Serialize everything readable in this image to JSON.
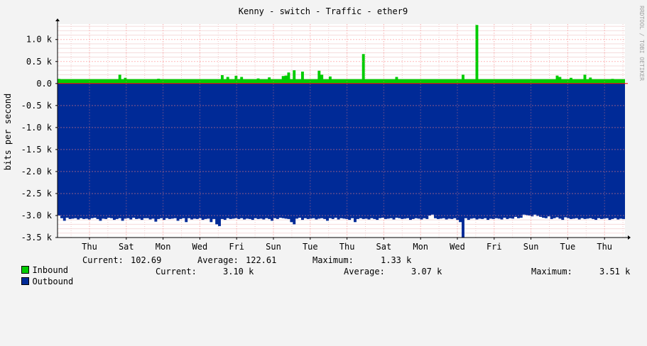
{
  "chart_data": {
    "type": "area",
    "title": "Kenny - switch - Traffic - ether9",
    "ylabel": "bits per second",
    "watermark": "RRDTOOL / TOBI OETIKER",
    "ylim": [
      -3500,
      1350
    ],
    "yticks": [
      1000,
      500,
      0,
      -500,
      -1000,
      -1500,
      -2000,
      -2500,
      -3000,
      -3500
    ],
    "ytick_labels": [
      "1.0 k",
      "0.5 k",
      "0.0",
      "-0.5 k",
      "-1.0 k",
      "-1.5 k",
      "-2.0 k",
      "-2.5 k",
      "-3.0 k",
      "-3.5 k"
    ],
    "xticks": [
      "Thu",
      "Sat",
      "Mon",
      "Wed",
      "Fri",
      "Sun",
      "Tue",
      "Thu",
      "Sat",
      "Mon",
      "Wed",
      "Fri",
      "Sun",
      "Tue",
      "Thu"
    ],
    "grid": true,
    "colors": {
      "inbound": "#00cc00",
      "outbound": "#002a97",
      "grid": "#ff9999",
      "zero": "#ff0000"
    },
    "series": [
      {
        "name": "Inbound",
        "values": [
          105,
          100,
          100,
          100,
          100,
          100,
          100,
          100,
          100,
          100,
          100,
          100,
          100,
          100,
          100,
          100,
          100,
          100,
          100,
          100,
          100,
          100,
          100,
          100,
          100,
          100,
          100,
          100,
          100,
          100,
          100,
          100,
          100,
          100,
          100,
          100,
          100,
          100,
          100,
          100,
          100,
          100,
          100,
          100,
          100,
          100,
          100,
          100,
          100,
          100,
          100,
          100,
          100,
          100,
          100,
          100,
          100,
          100,
          100,
          100,
          100,
          100,
          100,
          100,
          100,
          100,
          100,
          100,
          100,
          100,
          100,
          100,
          100,
          100,
          100,
          100,
          100,
          100,
          100,
          100,
          100,
          100,
          100,
          100,
          100,
          100,
          100,
          100,
          100,
          100,
          100,
          100,
          100,
          100,
          100,
          100,
          100,
          100,
          100,
          100,
          100,
          100,
          100,
          100,
          100,
          100,
          100,
          100,
          100,
          100,
          100,
          100,
          100,
          100,
          100,
          100,
          100,
          100,
          100,
          100,
          100,
          100,
          100,
          100,
          100,
          100,
          100,
          100,
          100,
          100,
          100,
          100,
          100,
          100,
          100,
          100,
          100,
          100,
          100,
          100,
          100,
          100,
          100,
          100,
          100,
          100,
          100,
          100,
          100,
          100,
          100,
          100,
          100,
          100,
          100,
          100,
          100,
          100,
          100,
          100,
          100,
          100,
          100,
          100,
          100,
          100,
          100,
          100,
          100,
          100,
          100,
          100,
          100,
          100,
          100,
          100,
          100,
          100,
          100,
          100,
          100,
          100,
          100,
          100,
          100,
          100,
          100,
          100,
          100,
          100,
          100,
          100,
          100,
          100,
          100,
          100,
          100,
          100,
          100,
          100,
          105
        ],
        "spikes": [
          [
            22,
            200
          ],
          [
            24,
            130
          ],
          [
            36,
            110
          ],
          [
            59,
            190
          ],
          [
            61,
            150
          ],
          [
            64,
            175
          ],
          [
            66,
            150
          ],
          [
            72,
            115
          ],
          [
            76,
            140
          ],
          [
            81,
            170
          ],
          [
            82,
            180
          ],
          [
            83,
            250
          ],
          [
            85,
            300
          ],
          [
            88,
            270
          ],
          [
            94,
            290
          ],
          [
            95,
            200
          ],
          [
            98,
            160
          ],
          [
            110,
            670
          ],
          [
            122,
            150
          ],
          [
            146,
            200
          ],
          [
            151,
            1330
          ],
          [
            180,
            180
          ],
          [
            181,
            150
          ],
          [
            185,
            130
          ],
          [
            190,
            200
          ],
          [
            192,
            135
          ]
        ],
        "current": "102.69",
        "average": "122.61",
        "maximum": "1.33 k"
      },
      {
        "name": "Outbound",
        "values": [
          -3000,
          -3060,
          -3120,
          -3050,
          -3080,
          -3070,
          -3060,
          -3090,
          -3060,
          -3080,
          -3070,
          -3090,
          -3060,
          -3050,
          -3080,
          -3120,
          -3070,
          -3080,
          -3050,
          -3060,
          -3100,
          -3080,
          -3060,
          -3120,
          -3070,
          -3060,
          -3090,
          -3050,
          -3080,
          -3070,
          -3100,
          -3060,
          -3060,
          -3090,
          -3070,
          -3140,
          -3080,
          -3060,
          -3100,
          -3060,
          -3080,
          -3070,
          -3060,
          -3120,
          -3080,
          -3060,
          -3150,
          -3060,
          -3090,
          -3070,
          -3080,
          -3060,
          -3100,
          -3080,
          -3070,
          -3150,
          -3080,
          -3200,
          -3240,
          -3080,
          -3100,
          -3060,
          -3080,
          -3070,
          -3060,
          -3080,
          -3060,
          -3090,
          -3070,
          -3080,
          -3100,
          -3060,
          -3080,
          -3070,
          -3090,
          -3060,
          -3080,
          -3120,
          -3060,
          -3080,
          -3050,
          -3060,
          -3070,
          -3080,
          -3150,
          -3200,
          -3070,
          -3050,
          -3100,
          -3060,
          -3080,
          -3070,
          -3060,
          -3090,
          -3070,
          -3060,
          -3080,
          -3120,
          -3060,
          -3080,
          -3050,
          -3090,
          -3060,
          -3070,
          -3080,
          -3100,
          -3060,
          -3150,
          -3080,
          -3060,
          -3080,
          -3070,
          -3090,
          -3060,
          -3080,
          -3100,
          -3060,
          -3050,
          -3080,
          -3070,
          -3060,
          -3090,
          -3050,
          -3060,
          -3080,
          -3070,
          -3060,
          -3100,
          -3080,
          -3060,
          -3070,
          -3090,
          -3060,
          -3080,
          -3000,
          -2980,
          -3060,
          -3080,
          -3070,
          -3060,
          -3090,
          -3070,
          -3080,
          -3060,
          -3100,
          -3150,
          -3500,
          -3060,
          -3100,
          -3070,
          -3060,
          -3090,
          -3070,
          -3080,
          -3060,
          -3100,
          -3070,
          -3080,
          -3060,
          -3070,
          -3090,
          -3050,
          -3080,
          -3060,
          -3070,
          -3030,
          -3060,
          -3050,
          -2980,
          -2990,
          -3000,
          -3020,
          -2980,
          -3010,
          -3030,
          -3050,
          -3060,
          -3020,
          -3080,
          -3060,
          -3040,
          -3070,
          -3100,
          -3040,
          -3060,
          -3080,
          -3070,
          -3060,
          -3090,
          -3060,
          -3080,
          -3070,
          -3060,
          -3080,
          -3100,
          -3060,
          -3080,
          -3070,
          -3060,
          -3100,
          -3080,
          -3060,
          -3090,
          -3070,
          -3080
        ],
        "current": "3.10 k",
        "average": "3.07 k",
        "maximum": "3.51 k"
      }
    ]
  },
  "legend": {
    "inbound": {
      "name": "Inbound",
      "current_label": "Current:",
      "current": "102.69",
      "average_label": "Average:",
      "average": "122.61",
      "maximum_label": "Maximum:",
      "maximum": "1.33 k"
    },
    "outbound": {
      "name": "Outbound",
      "current_label": "Current:",
      "current": "3.10 k",
      "average_label": "Average:",
      "average": "3.07 k",
      "maximum_label": "Maximum:",
      "maximum": "3.51 k"
    }
  }
}
